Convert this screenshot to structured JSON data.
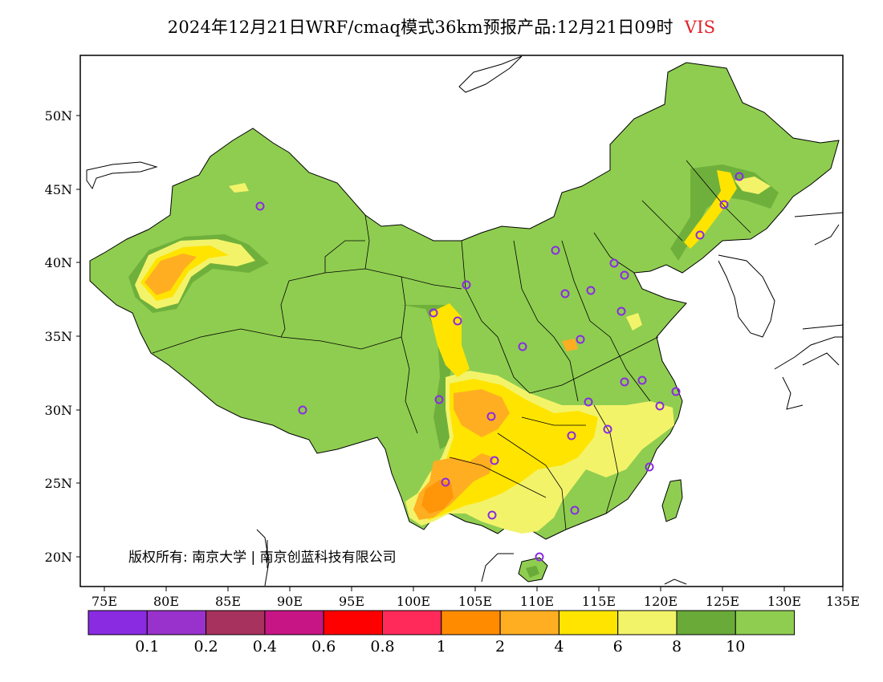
{
  "title": {
    "main": "2024年12月21日WRF/cmaq模式36km预报产品:12月21日09时",
    "variable": "VIS"
  },
  "axes": {
    "lat_ticks": [
      "50N",
      "45N",
      "40N",
      "35N",
      "30N",
      "25N",
      "20N"
    ],
    "lon_ticks": [
      "75E",
      "80E",
      "85E",
      "90E",
      "95E",
      "100E",
      "105E",
      "110E",
      "115E",
      "120E",
      "125E",
      "130E",
      "135E"
    ]
  },
  "copyright": "版权所有: 南京大学 | 南京创蓝科技有限公司",
  "legend": {
    "colors": [
      "#8a2be2",
      "#9932cc",
      "#a8325e",
      "#c71585",
      "#ff0000",
      "#ff2a5a",
      "#ff8c00",
      "#ffae22",
      "#ffe400",
      "#f3f36a",
      "#6aaa38",
      "#8fcd50"
    ],
    "labels": [
      "0.1",
      "0.2",
      "0.4",
      "0.6",
      "0.8",
      "1",
      "2",
      "4",
      "6",
      "8",
      "10"
    ]
  },
  "colors": {
    "land_base": "#8fcd50",
    "land_dark": "#6aaa38",
    "station_marker": "#8a2be2",
    "title_variable": "#e0222a"
  }
}
